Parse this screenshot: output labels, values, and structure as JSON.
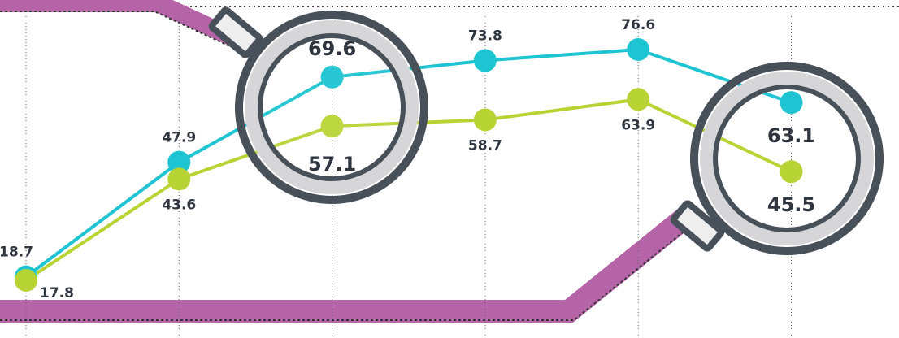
{
  "chart_data": {
    "type": "line",
    "categories": [
      null,
      null,
      null,
      null,
      null,
      null
    ],
    "series": [
      {
        "color": "#1ec4d2",
        "values": [
          18.7,
          47.9,
          69.6,
          73.8,
          76.6,
          63.1
        ]
      },
      {
        "color": "#b8d434",
        "values": [
          17.8,
          43.6,
          57.1,
          58.7,
          63.9,
          45.5
        ]
      }
    ]
  }
}
